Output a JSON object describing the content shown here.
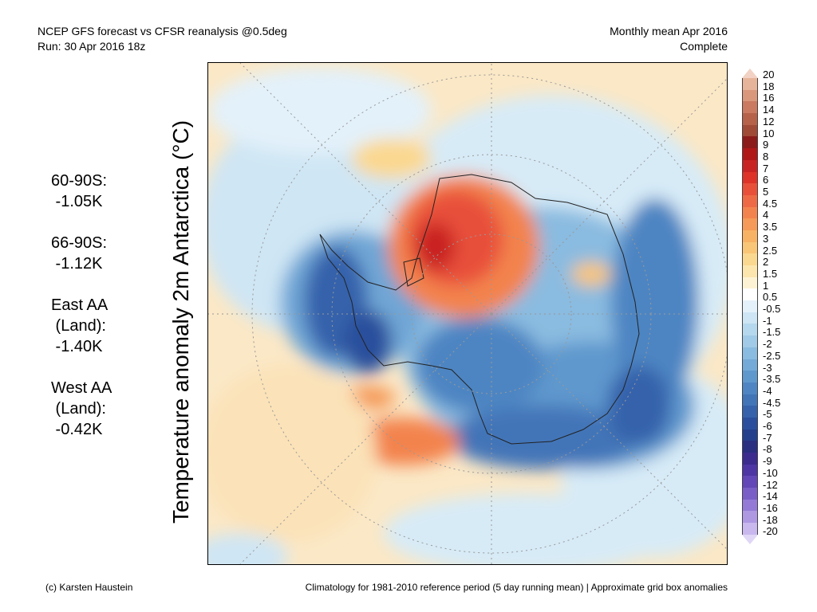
{
  "header": {
    "title_line1": "NCEP GFS forecast vs CFSR reanalysis @0.5deg",
    "title_line2": "Run: 30 Apr 2016 18z",
    "period_line1": "Monthly mean Apr 2016",
    "period_line2": "Complete"
  },
  "side_title": "Temperature anomaly 2m Antarctica (°C)",
  "stats": [
    {
      "lines": [
        "60-90S:",
        " -1.05K"
      ]
    },
    {
      "lines": [
        "66-90S:",
        " -1.12K"
      ]
    },
    {
      "lines": [
        "East AA",
        " (Land):",
        " -1.40K"
      ]
    },
    {
      "lines": [
        "West AA",
        " (Land):",
        " -0.42K"
      ]
    }
  ],
  "colorbar": {
    "labels": [
      "20",
      "18",
      "16",
      "14",
      "12",
      "10",
      "9",
      "8",
      "7",
      "6",
      "5",
      "4.5",
      "4",
      "3.5",
      "3",
      "2.5",
      "2",
      "1.5",
      "1",
      "0.5",
      "-0.5",
      "-1",
      "-1.5",
      "-2",
      "-2.5",
      "-3",
      "-3.5",
      "-4",
      "-4.5",
      "-5",
      "-6",
      "-7",
      "-8",
      "-9",
      "-10",
      "-12",
      "-14",
      "-16",
      "-18",
      "-20"
    ],
    "colors": [
      "#f2d2c4",
      "#e6b49a",
      "#d9977b",
      "#c97a60",
      "#b6614a",
      "#a04a38",
      "#8c1c1c",
      "#b01818",
      "#c92424",
      "#dd3328",
      "#e8503a",
      "#ee6a46",
      "#f3834e",
      "#f59a58",
      "#f8b264",
      "#f9c576",
      "#fbd890",
      "#fce6ae",
      "#fdf3d4",
      "#ffffff",
      "#e4f1fa",
      "#cde5f4",
      "#b6d8ee",
      "#a0cae7",
      "#8abbe0",
      "#73aad7",
      "#5f98cd",
      "#4e85c2",
      "#4274b8",
      "#3562ab",
      "#2b4f9c",
      "#243f8c",
      "#2a2f80",
      "#3c2c8e",
      "#4e36a4",
      "#6346b8",
      "#7a5ec8",
      "#947ad6",
      "#ae98e2",
      "#c9b8ee",
      "#e0d6f6"
    ],
    "arrow_top_color": "#f2d2c4",
    "arrow_bottom_color": "#e0d6f6"
  },
  "footer": {
    "left": "(c) Karsten Haustein",
    "right": "Climatology for 1981-2010 reference period (5 day running mean) | Approximate grid box anomalies"
  }
}
